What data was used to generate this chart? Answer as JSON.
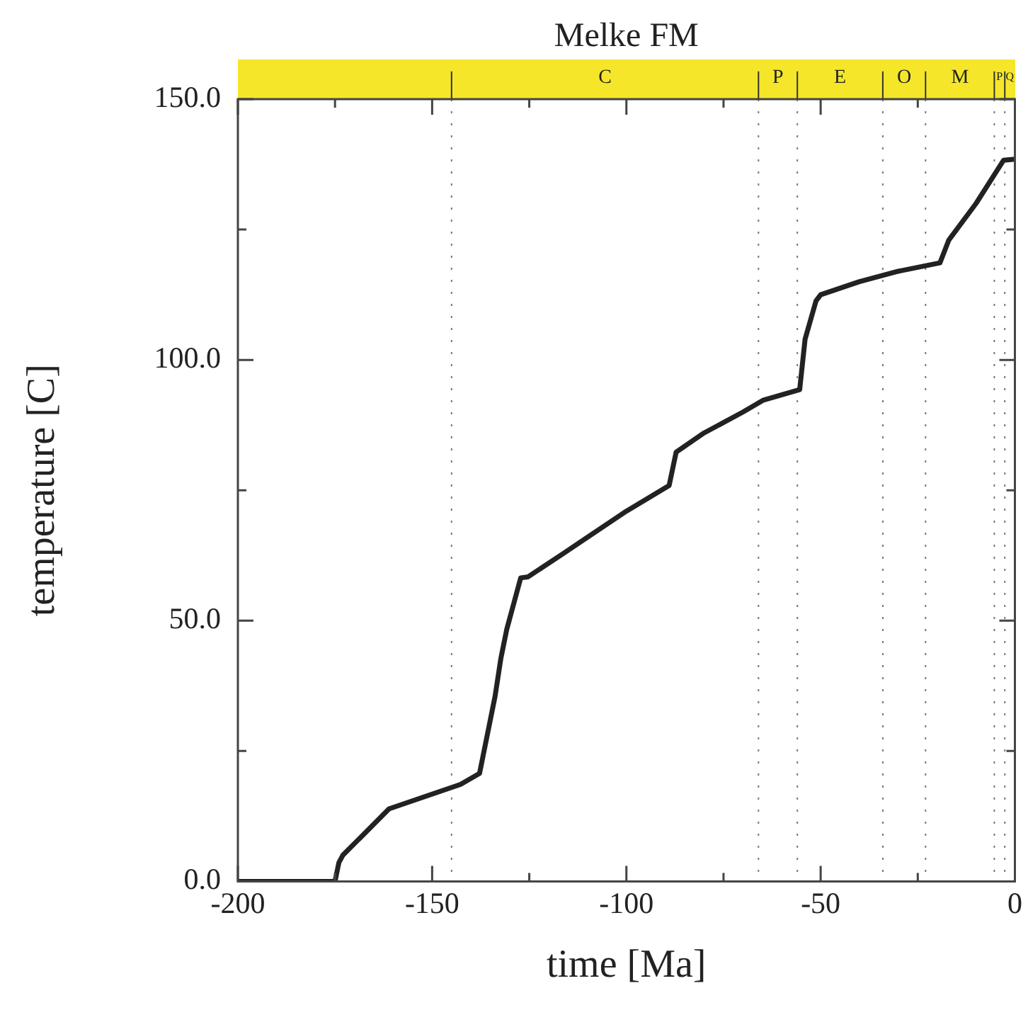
{
  "chart_data": {
    "type": "line",
    "title": "Melke FM",
    "xlabel": "time [Ma]",
    "ylabel": "temperature [C]",
    "x": [
      -200,
      -175,
      -174,
      -173,
      -161.1,
      -142.7,
      -137.8,
      -133.8,
      -132.3,
      -130.8,
      -127.2,
      -125.3,
      -116,
      -100,
      -89,
      -87.2,
      -80,
      -70,
      -64.7,
      -55.4,
      -54,
      -51.2,
      -50,
      -40,
      -30,
      -19.3,
      -17,
      -10,
      -2.9,
      0
    ],
    "series": [
      {
        "color": "#222222",
        "values": [
          0,
          0,
          3.6,
          5,
          13.9,
          18.6,
          20.7,
          35.5,
          42.8,
          48.3,
          58.2,
          58.4,
          63,
          71,
          75.9,
          82.3,
          86,
          90,
          92.3,
          94.3,
          104,
          111.3,
          112.5,
          115,
          117,
          118.6,
          123,
          130,
          138.3,
          138.5
        ]
      }
    ],
    "xlim": [
      -200,
      0
    ],
    "ylim": [
      0,
      150
    ],
    "xticks": [
      -200,
      {
        "value": -175,
        "label": null
      },
      -150,
      {
        "value": -125,
        "label": null
      },
      -100,
      {
        "value": -75,
        "label": null
      },
      -50,
      {
        "value": -25,
        "label": null
      },
      0
    ],
    "yticks": [
      {
        "value": 0,
        "label": "0.0"
      },
      {
        "value": 25,
        "label": null
      },
      {
        "value": 50,
        "label": "50.0"
      },
      {
        "value": 75,
        "label": null
      },
      {
        "value": 100,
        "label": "100.0"
      },
      {
        "value": 125,
        "label": null
      },
      {
        "value": 150,
        "label": "150.0"
      }
    ],
    "ref_lines": [
      {
        "axis": "x",
        "value": -145,
        "label": null,
        "color": "#777777",
        "line_style": "dotted"
      },
      {
        "axis": "x",
        "value": -66,
        "label": null,
        "color": "#777777",
        "line_style": "dotted"
      },
      {
        "axis": "x",
        "value": -56,
        "label": null,
        "color": "#777777",
        "line_style": "dotted"
      },
      {
        "axis": "x",
        "value": -34,
        "label": null,
        "color": "#777777",
        "line_style": "dotted"
      },
      {
        "axis": "x",
        "value": -23,
        "label": null,
        "color": "#777777",
        "line_style": "dotted"
      },
      {
        "axis": "x",
        "value": -5.3,
        "label": null,
        "color": "#777777",
        "line_style": "dotted"
      },
      {
        "axis": "x",
        "value": -2.6,
        "label": null,
        "color": "#777777",
        "line_style": "dotted"
      }
    ],
    "annotations": [
      "C",
      "P",
      "E",
      "O",
      "M",
      "P",
      "Q"
    ],
    "grid": false,
    "legend": false,
    "marker": "none",
    "line_style": "solid"
  }
}
